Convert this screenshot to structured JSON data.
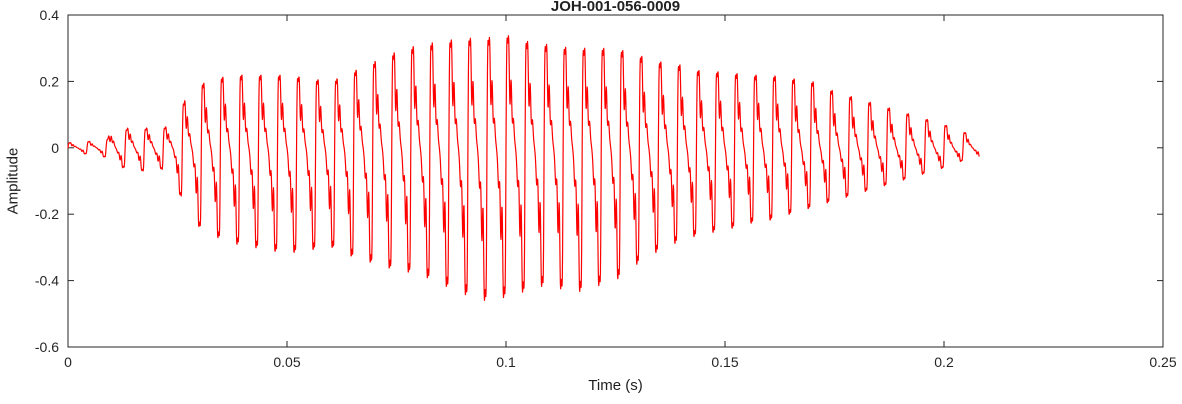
{
  "figure": {
    "background": "#ffffff"
  },
  "chart_data": {
    "type": "line",
    "title": "JOH-001-056-0009",
    "xlabel": "Time (s)",
    "ylabel": "Amplitude",
    "xlim": [
      0,
      0.25
    ],
    "ylim": [
      -0.6,
      0.4
    ],
    "x_ticks": [
      0,
      0.05,
      0.1,
      0.15,
      0.2,
      0.25
    ],
    "x_tick_labels": [
      "0",
      "0.05",
      "0.1",
      "0.15",
      "0.2",
      "0.25"
    ],
    "y_ticks": [
      -0.6,
      -0.4,
      -0.2,
      0,
      0.2,
      0.4
    ],
    "y_tick_labels": [
      "-0.6",
      "-0.4",
      "-0.2",
      "0",
      "0.2",
      "0.4"
    ],
    "grid": false,
    "legend": null,
    "line_color": "#ff0000",
    "axis_color": "#262626",
    "label_color": "#212121",
    "signal": {
      "description": "speech-like red waveform burst, amplitude vs time",
      "start_time": 0.0,
      "end_time": 0.208,
      "fundamental_hz": 230,
      "harmonics": [
        [
          1,
          1.0
        ],
        [
          2,
          0.55
        ],
        [
          3,
          0.38
        ],
        [
          4,
          0.25
        ],
        [
          5,
          0.14
        ],
        [
          8,
          0.16
        ],
        [
          9,
          0.1
        ]
      ],
      "envelope": [
        [
          0.0,
          0.015,
          -0.015
        ],
        [
          0.006,
          0.02,
          -0.02
        ],
        [
          0.009,
          0.025,
          -0.03
        ],
        [
          0.011,
          0.1,
          -0.06
        ],
        [
          0.013,
          0.05,
          -0.06
        ],
        [
          0.015,
          0.08,
          -0.05
        ],
        [
          0.017,
          0.05,
          -0.07
        ],
        [
          0.019,
          0.07,
          -0.09
        ],
        [
          0.021,
          0.05,
          -0.06
        ],
        [
          0.024,
          0.08,
          -0.1
        ],
        [
          0.027,
          0.15,
          -0.18
        ],
        [
          0.03,
          0.19,
          -0.24
        ],
        [
          0.034,
          0.21,
          -0.27
        ],
        [
          0.038,
          0.22,
          -0.29
        ],
        [
          0.042,
          0.22,
          -0.3
        ],
        [
          0.046,
          0.22,
          -0.31
        ],
        [
          0.05,
          0.22,
          -0.32
        ],
        [
          0.055,
          0.21,
          -0.31
        ],
        [
          0.06,
          0.2,
          -0.3
        ],
        [
          0.065,
          0.23,
          -0.33
        ],
        [
          0.07,
          0.26,
          -0.35
        ],
        [
          0.075,
          0.29,
          -0.37
        ],
        [
          0.08,
          0.31,
          -0.38
        ],
        [
          0.085,
          0.32,
          -0.41
        ],
        [
          0.09,
          0.33,
          -0.44
        ],
        [
          0.095,
          0.33,
          -0.46
        ],
        [
          0.1,
          0.34,
          -0.45
        ],
        [
          0.105,
          0.32,
          -0.43
        ],
        [
          0.11,
          0.31,
          -0.41
        ],
        [
          0.115,
          0.3,
          -0.44
        ],
        [
          0.12,
          0.3,
          -0.42
        ],
        [
          0.125,
          0.3,
          -0.4
        ],
        [
          0.13,
          0.28,
          -0.35
        ],
        [
          0.135,
          0.26,
          -0.31
        ],
        [
          0.14,
          0.25,
          -0.28
        ],
        [
          0.145,
          0.23,
          -0.26
        ],
        [
          0.15,
          0.23,
          -0.25
        ],
        [
          0.155,
          0.22,
          -0.23
        ],
        [
          0.16,
          0.22,
          -0.22
        ],
        [
          0.165,
          0.21,
          -0.2
        ],
        [
          0.17,
          0.2,
          -0.18
        ],
        [
          0.175,
          0.17,
          -0.16
        ],
        [
          0.18,
          0.15,
          -0.14
        ],
        [
          0.185,
          0.13,
          -0.12
        ],
        [
          0.19,
          0.11,
          -0.1
        ],
        [
          0.195,
          0.09,
          -0.08
        ],
        [
          0.2,
          0.07,
          -0.06
        ],
        [
          0.204,
          0.05,
          -0.04
        ],
        [
          0.208,
          0.03,
          -0.03
        ]
      ]
    }
  }
}
